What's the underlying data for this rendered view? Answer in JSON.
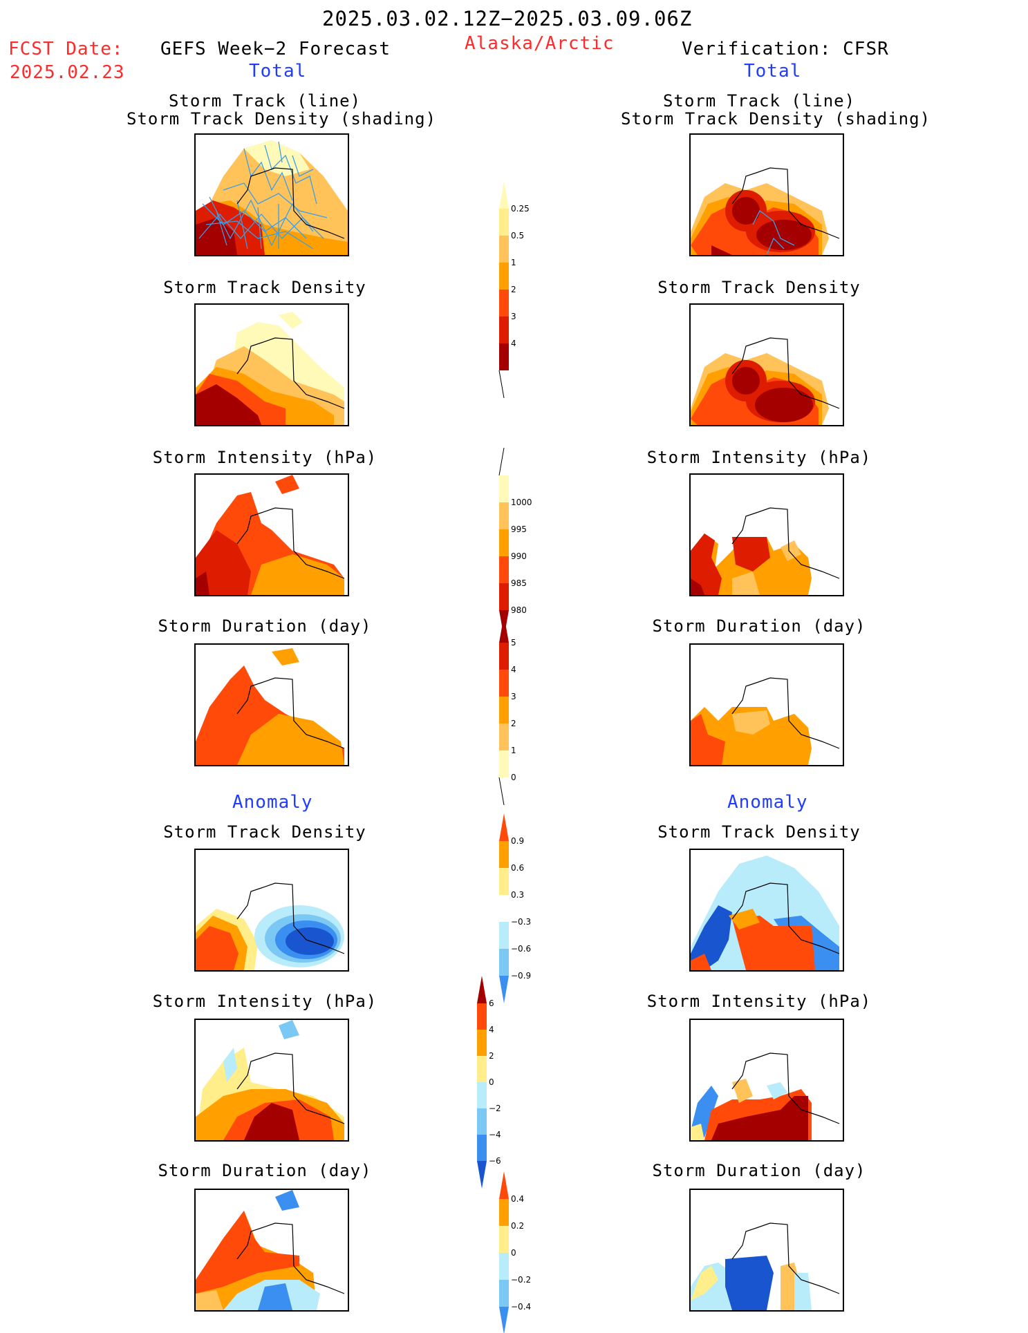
{
  "header": {
    "title": "2025.03.02.12Z−2025.03.09.06Z",
    "fcst_label": "FCST Date:",
    "fcst_date": "2025.02.23",
    "left_title": "GEFS Week−2 Forecast",
    "region": "Alaska/Arctic",
    "right_title": "Verification: CFSR",
    "total_left": "Total",
    "total_right": "Total",
    "anomaly_left": "Anomaly",
    "anomaly_right": "Anomaly"
  },
  "panel_titles": {
    "track_line": "Storm Track (line)",
    "track_shading": "Storm Track Density (shading)",
    "density": "Storm Track Density",
    "intensity": "Storm Intensity (hPa)",
    "duration": "Storm Duration (day)"
  },
  "colors": {
    "darkred": "#a50000",
    "red": "#dd1c00",
    "redorange": "#ff4a0a",
    "orange": "#ff9f00",
    "lightorange": "#ffc35a",
    "lightyellow": "#ffee8a",
    "paleyellow": "#fffab8",
    "white": "#ffffff",
    "paleblue": "#b8ecfa",
    "lightblue": "#7cc8f4",
    "blue": "#3a8ff0",
    "darkblue": "#1a55d0",
    "track_line": "#3a9ee8"
  },
  "chart_data": [
    {
      "type": "heatmap",
      "name": "colorbar-density",
      "ticks": [
        "0.25",
        "0.5",
        "1",
        "2",
        "3",
        "4"
      ],
      "colors": [
        "#fffab8",
        "#ffee8a",
        "#ffc35a",
        "#ff9f00",
        "#ff4a0a",
        "#dd1c00",
        "#a50000"
      ]
    },
    {
      "type": "heatmap",
      "name": "colorbar-intensity",
      "ticks": [
        "1000",
        "995",
        "990",
        "985",
        "980"
      ],
      "colors": [
        "#fffab8",
        "#ffc35a",
        "#ff9f00",
        "#ff4a0a",
        "#dd1c00",
        "#a50000"
      ]
    },
    {
      "type": "heatmap",
      "name": "colorbar-duration",
      "ticks": [
        "5",
        "4",
        "3",
        "2",
        "1",
        "0"
      ],
      "colors": [
        "#a50000",
        "#dd1c00",
        "#ff4a0a",
        "#ff9f00",
        "#ffc35a",
        "#fffab8"
      ]
    },
    {
      "type": "heatmap",
      "name": "colorbar-density-anomaly",
      "ticks": [
        "0.9",
        "0.6",
        "0.3",
        "−0.3",
        "−0.6",
        "−0.9"
      ],
      "colors": [
        "#ff4a0a",
        "#ff9f00",
        "#ffee8a",
        "#ffffff",
        "#b8ecfa",
        "#7cc8f4",
        "#3a8ff0"
      ]
    },
    {
      "type": "heatmap",
      "name": "colorbar-intensity-anomaly",
      "ticks": [
        "6",
        "4",
        "2",
        "0",
        "−2",
        "−4",
        "−6"
      ],
      "colors": [
        "#a50000",
        "#ff4a0a",
        "#ff9f00",
        "#ffee8a",
        "#b8ecfa",
        "#7cc8f4",
        "#3a8ff0",
        "#1a55d0"
      ]
    },
    {
      "type": "heatmap",
      "name": "colorbar-duration-anomaly",
      "ticks": [
        "0.4",
        "0.2",
        "0",
        "−0.2",
        "−0.4"
      ],
      "colors": [
        "#ff4a0a",
        "#ff9f00",
        "#ffee8a",
        "#b8ecfa",
        "#7cc8f4",
        "#3a8ff0"
      ]
    }
  ]
}
